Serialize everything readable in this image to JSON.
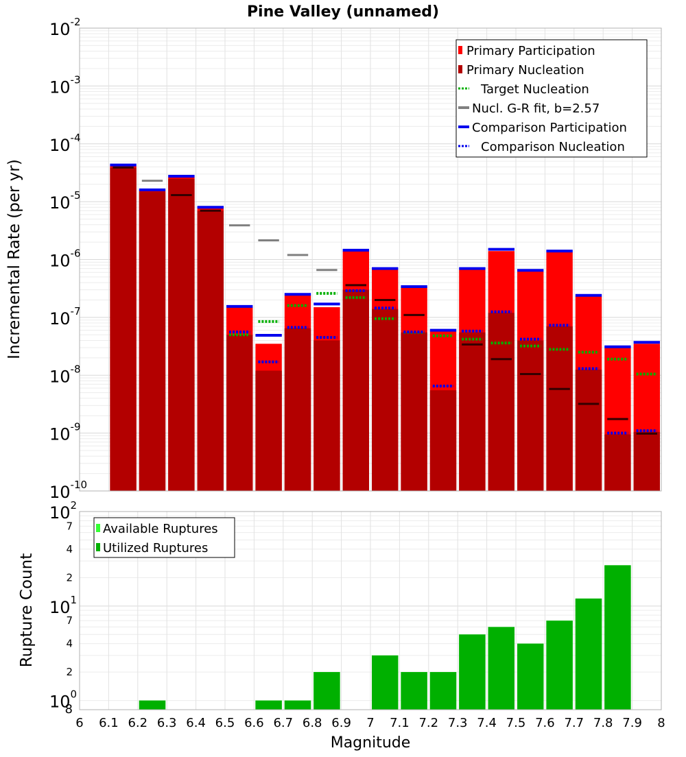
{
  "chart_data": [
    {
      "type": "bar",
      "title": "Pine Valley (unnamed)",
      "ylabel": "Incremental Rate (per yr)",
      "yscale": "log",
      "ylim_exp": [
        -10,
        -2
      ],
      "xlim": [
        6,
        8
      ],
      "bin_width": 0.1,
      "grid": true,
      "legend_position": "top-right",
      "legend": [
        {
          "label": "Primary Participation",
          "style": "bar",
          "color": "#ff0000"
        },
        {
          "label": "Primary Nucleation",
          "style": "bar",
          "color": "#b30000"
        },
        {
          "label": "Target Nucleation",
          "style": "dotted",
          "color": "#00b000"
        },
        {
          "label": "Nucl. G-R fit, b=2.57",
          "style": "solid",
          "color": "#808080"
        },
        {
          "label": "Comparison Participation",
          "style": "solid",
          "color": "#0000ee"
        },
        {
          "label": "Comparison Nucleation",
          "style": "dotted",
          "color": "#0000ee"
        }
      ],
      "colors": {
        "participation": "#ff0000",
        "nucleation": "#b30000",
        "target": "#00b000",
        "gr_fit": "#808080",
        "comparison": "#0000ee",
        "nucleation_mark": "#330000"
      },
      "x": [
        6.15,
        6.25,
        6.35,
        6.45,
        6.55,
        6.65,
        6.75,
        6.85,
        6.95,
        7.05,
        7.15,
        7.25,
        7.35,
        7.45,
        7.55,
        7.65,
        7.75,
        7.85,
        7.95
      ],
      "series": [
        {
          "name": "Primary Participation",
          "values": [
            4.2e-05,
            1.6e-05,
            2.7e-05,
            7.8e-06,
            1.5e-07,
            3.5e-08,
            2.4e-07,
            1.5e-07,
            1.4e-06,
            6.8e-07,
            3.3e-07,
            5.8e-08,
            6.7e-07,
            1.4e-06,
            6.3e-07,
            1.35e-06,
            2.3e-07,
            3e-08,
            3.5e-08
          ]
        },
        {
          "name": "Primary Nucleation",
          "values": [
            3.9e-05,
            1.5e-05,
            2.5e-05,
            7e-06,
            5e-08,
            1.2e-08,
            6.5e-08,
            4e-08,
            3e-07,
            1.4e-07,
            5.5e-08,
            5.5e-09,
            5.5e-08,
            1.2e-07,
            4e-08,
            7e-08,
            1.25e-08,
            9.5e-10,
            1.05e-09
          ]
        },
        {
          "name": "Target Nucleation",
          "values": [
            null,
            null,
            null,
            null,
            5e-08,
            8.5e-08,
            1.6e-07,
            2.6e-07,
            2.2e-07,
            9.5e-08,
            5.5e-08,
            4.8e-08,
            4.2e-08,
            3.6e-08,
            3.2e-08,
            2.8e-08,
            2.5e-08,
            1.9e-08,
            1.05e-08
          ]
        },
        {
          "name": "Nucl. G-R fit, b=2.57",
          "values": [
            3.9e-05,
            2.3e-05,
            1.3e-05,
            7e-06,
            3.9e-06,
            2.15e-06,
            1.2e-06,
            6.6e-07,
            3.6e-07,
            2e-07,
            1.1e-07,
            6e-08,
            3.4e-08,
            1.9e-08,
            1.05e-08,
            5.8e-09,
            3.2e-09,
            1.75e-09,
            9.8e-10
          ]
        },
        {
          "name": "Comparison Participation",
          "values": [
            4.3e-05,
            1.6e-05,
            2.75e-05,
            8e-06,
            1.55e-07,
            4.9e-08,
            2.5e-07,
            1.7e-07,
            1.45e-06,
            7e-07,
            3.4e-07,
            6e-08,
            7e-07,
            1.5e-06,
            6.5e-07,
            1.4e-06,
            2.4e-07,
            3.1e-08,
            3.7e-08
          ]
        },
        {
          "name": "Comparison Nucleation",
          "values": [
            null,
            null,
            null,
            null,
            5.6e-08,
            1.7e-08,
            6.7e-08,
            4.5e-08,
            2.9e-07,
            1.45e-07,
            5.6e-08,
            6.5e-09,
            5.8e-08,
            1.25e-07,
            4.2e-08,
            7.3e-08,
            1.3e-08,
            1e-09,
            1.1e-09
          ]
        }
      ]
    },
    {
      "type": "bar",
      "ylabel": "Rupture Count",
      "xlabel": "Magnitude",
      "yscale": "log",
      "ylim": [
        0.8,
        100
      ],
      "xlim": [
        6,
        8
      ],
      "grid": true,
      "legend_position": "top-left",
      "legend": [
        {
          "label": "Available Ruptures",
          "color": "#33ff33"
        },
        {
          "label": "Utilized Ruptures",
          "color": "#00b000"
        }
      ],
      "x": [
        6.25,
        6.65,
        6.75,
        6.85,
        7.05,
        7.15,
        7.25,
        7.35,
        7.45,
        7.55,
        7.65,
        7.75,
        7.85
      ],
      "values": [
        1,
        1,
        1,
        2,
        3,
        2,
        2,
        5,
        6,
        4,
        7,
        12,
        27
      ],
      "x_ticks": [
        "6",
        "6.1",
        "6.2",
        "6.3",
        "6.4",
        "6.5",
        "6.6",
        "6.7",
        "6.8",
        "6.9",
        "7",
        "7.1",
        "7.2",
        "7.3",
        "7.4",
        "7.5",
        "7.6",
        "7.7",
        "7.8",
        "7.9",
        "8"
      ]
    }
  ]
}
